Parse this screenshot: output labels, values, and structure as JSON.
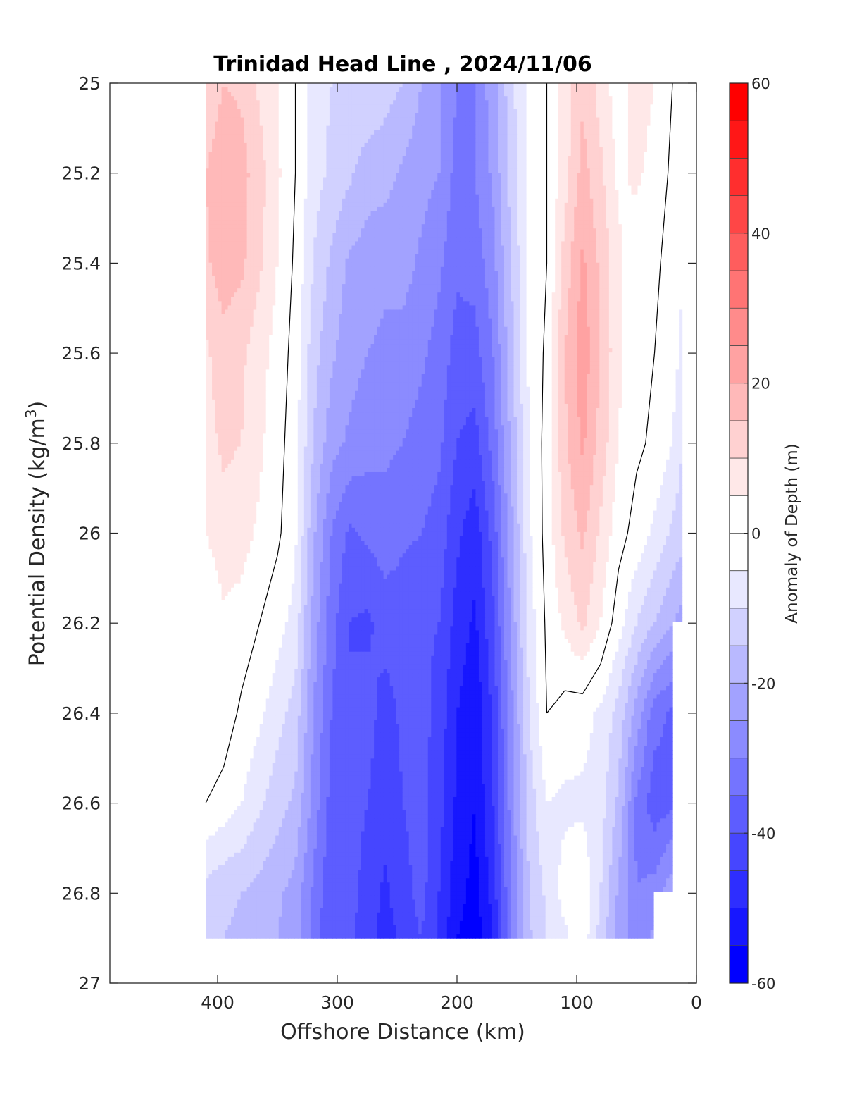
{
  "chart_data": {
    "type": "heatmap",
    "title": "Trinidad Head Line , 2024/11/06",
    "xlabel": "Offshore Distance (km)",
    "ylabel": "Potential Density (kg/m",
    "ylabel_sup": "3",
    "ylabel_close": ")",
    "colorbar_label": "Anomaly of Depth (m)",
    "xlim": [
      490,
      0
    ],
    "x_reversed": true,
    "ylim": [
      25,
      27
    ],
    "y_reversed": true,
    "x_ticks": [
      400,
      300,
      200,
      100,
      0
    ],
    "y_ticks": [
      "25",
      "25.2",
      "25.4",
      "25.6",
      "25.8",
      "26",
      "26.2",
      "26.4",
      "26.6",
      "26.8",
      "27"
    ],
    "y_tick_values": [
      25,
      25.2,
      25.4,
      25.6,
      25.8,
      26,
      26.2,
      26.4,
      26.6,
      26.8,
      27
    ],
    "colorbar_ticks": [
      "60",
      "40",
      "20",
      "0",
      "-20",
      "-40",
      "-60"
    ],
    "colorbar_tick_values": [
      60,
      40,
      20,
      0,
      -20,
      -40,
      -60
    ],
    "clim": [
      -60,
      60
    ],
    "contour_step": 5,
    "colors": {
      "positive": "#ff0000",
      "negative": "#0000ff",
      "zero": "#ffffff",
      "contour_zero": "#000000"
    },
    "x": [
      410,
      395,
      380,
      365,
      350,
      335,
      320,
      305,
      290,
      275,
      260,
      245,
      230,
      215,
      200,
      185,
      170,
      155,
      140,
      125,
      110,
      95,
      80,
      65,
      50,
      35,
      20,
      12
    ],
    "y": [
      25.0,
      25.2,
      25.4,
      25.6,
      25.8,
      26.0,
      26.2,
      26.4,
      26.6,
      26.8,
      26.9
    ],
    "z": [
      [
        10,
        15,
        14,
        9,
        5,
        0,
        -8,
        -10,
        -10,
        -10,
        -13,
        -15,
        -20,
        -24,
        -30,
        -30,
        -22,
        -12,
        -3,
        0,
        7,
        14,
        8,
        2,
        8,
        5,
        0,
        null
      ],
      [
        15,
        19,
        17,
        12,
        6,
        0,
        -8,
        -11,
        -14,
        -18,
        -18,
        -21,
        -23,
        -25,
        -32,
        -30,
        -24,
        -13,
        -3,
        0,
        8,
        17,
        11,
        4,
        6,
        3,
        -1,
        -3
      ],
      [
        14,
        18,
        16,
        11,
        5,
        -1,
        -10,
        -16,
        -21,
        -22,
        -24,
        -23,
        -26,
        -29,
        -34,
        -33,
        -27,
        -15,
        -4,
        0,
        12,
        21,
        14,
        6,
        2,
        1,
        -2,
        -5
      ],
      [
        9,
        13,
        11,
        7,
        3,
        -2,
        -13,
        -19,
        -23,
        -25,
        -26,
        -27,
        -29,
        -32,
        -37,
        -37,
        -30,
        -17,
        -4,
        1,
        15,
        23,
        15,
        6,
        1,
        0,
        -3,
        -6
      ],
      [
        8,
        11,
        10,
        6,
        2,
        -3,
        -15,
        -23,
        -26,
        -28,
        -29,
        -30,
        -32,
        -34,
        -40,
        -42,
        -33,
        -19,
        -5,
        2,
        14,
        21,
        13,
        5,
        1,
        -1,
        -5,
        -10
      ],
      [
        5,
        8,
        7,
        4,
        1,
        -4,
        -19,
        -30,
        -36,
        -34,
        -32,
        -34,
        -35,
        -37,
        -44,
        -48,
        -38,
        -22,
        -6,
        2,
        11,
        16,
        9,
        2,
        -2,
        -6,
        -11,
        -13
      ],
      [
        0,
        4,
        3,
        0,
        -3,
        -7,
        -22,
        -33,
        -40,
        -41,
        -38,
        -38,
        -39,
        -40,
        -47,
        -51,
        -41,
        -24,
        -8,
        1,
        6,
        11,
        5,
        -3,
        -10,
        -15,
        -20,
        -22
      ],
      [
        1,
        3,
        -1,
        -4,
        -8,
        -12,
        -25,
        -35,
        -40,
        -38,
        -42,
        -39,
        -38,
        -42,
        -50,
        -54,
        -44,
        -27,
        -10,
        0,
        -2,
        -3,
        -6,
        -12,
        -22,
        -33,
        -36,
        null
      ],
      [
        0,
        -2,
        -5,
        -9,
        -13,
        -16,
        -27,
        -37,
        -38,
        -40,
        -43,
        -40,
        -38,
        -43,
        -51,
        -55,
        -45,
        -28,
        -13,
        -5,
        -6,
        -6,
        -8,
        -16,
        -31,
        -38,
        -36,
        null
      ],
      [
        -12,
        -14,
        -15,
        -17,
        -19,
        -22,
        -31,
        -39,
        -38,
        -42,
        -46,
        -42,
        -38,
        -45,
        -53,
        -57,
        -48,
        -30,
        -15,
        -9,
        -3,
        -1,
        -10,
        -21,
        -30,
        -28,
        -21,
        null
      ],
      [
        -14,
        -15,
        -16,
        -18,
        -20,
        -23,
        -32,
        -40,
        -39,
        -43,
        -47,
        -44,
        -40,
        -46,
        -55,
        -58,
        -50,
        -31,
        -16,
        -10,
        -6,
        -2,
        -12,
        -22,
        -27,
        -24,
        null,
        null
      ]
    ]
  }
}
